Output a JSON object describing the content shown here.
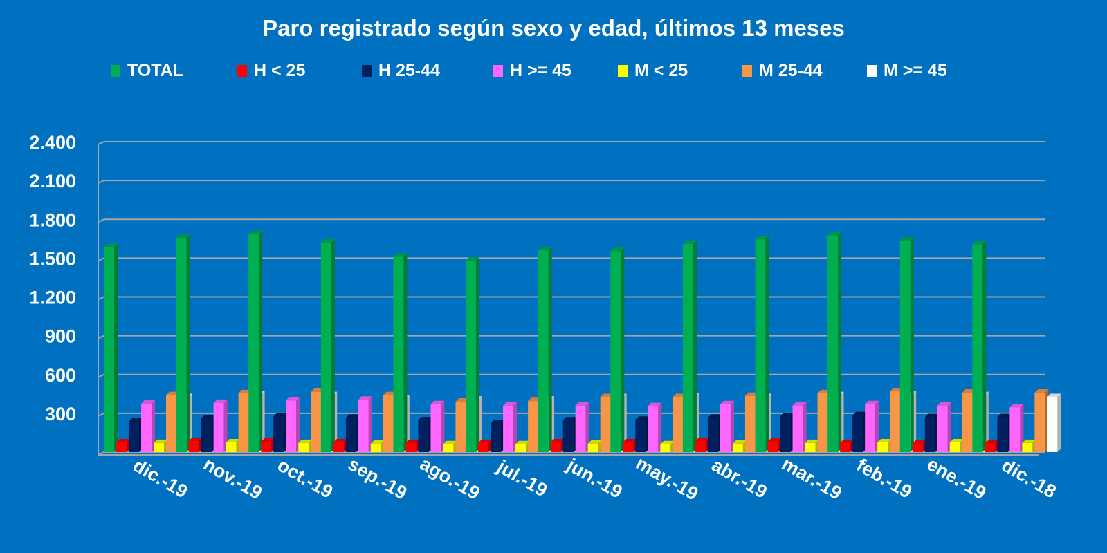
{
  "chart_data": {
    "type": "bar",
    "title": "Paro registrado según sexo y edad, últimos 13 meses",
    "xlabel": "",
    "ylabel": "",
    "ylim": [
      0,
      2400
    ],
    "yticks": [
      "",
      "300",
      "600",
      "900",
      "1.200",
      "1.500",
      "1.800",
      "2.100",
      "2.400"
    ],
    "grid": true,
    "legend_position": "top",
    "categories": [
      "dic.-19",
      "nov.-19",
      "oct.-19",
      "sep.-19",
      "ago.-19",
      "jul.-19",
      "jun.-19",
      "may.-19",
      "abr.-19",
      "mar.-19",
      "feb.-19",
      "ene.-19",
      "dic.-18"
    ],
    "series": [
      {
        "name": "TOTAL",
        "color": "#00b050",
        "values": [
          1585,
          1655,
          1685,
          1620,
          1510,
          1480,
          1560,
          1555,
          1610,
          1645,
          1675,
          1635,
          1605
        ]
      },
      {
        "name": "H < 25",
        "color": "#ff0000",
        "values": [
          75,
          85,
          80,
          75,
          70,
          70,
          75,
          75,
          85,
          80,
          70,
          65,
          65
        ]
      },
      {
        "name": "H 25-44",
        "color": "#002060",
        "values": [
          235,
          260,
          275,
          265,
          245,
          220,
          245,
          250,
          265,
          275,
          285,
          270,
          270
        ]
      },
      {
        "name": "H >= 45",
        "color": "#ff66ff",
        "values": [
          375,
          380,
          400,
          405,
          370,
          360,
          360,
          355,
          370,
          360,
          370,
          360,
          345
        ]
      },
      {
        "name": "M < 25",
        "color": "#ffff00",
        "values": [
          70,
          75,
          70,
          65,
          60,
          60,
          65,
          60,
          65,
          70,
          75,
          75,
          70
        ]
      },
      {
        "name": "M 25-44",
        "color": "#f79646",
        "values": [
          440,
          455,
          465,
          440,
          390,
          395,
          425,
          425,
          435,
          455,
          470,
          460,
          460
        ]
      },
      {
        "name": "M >= 45",
        "color": "#ffffff",
        "values": [
          425,
          445,
          440,
          410,
          405,
          405,
          425,
          430,
          425,
          440,
          445,
          440,
          425
        ]
      }
    ]
  }
}
